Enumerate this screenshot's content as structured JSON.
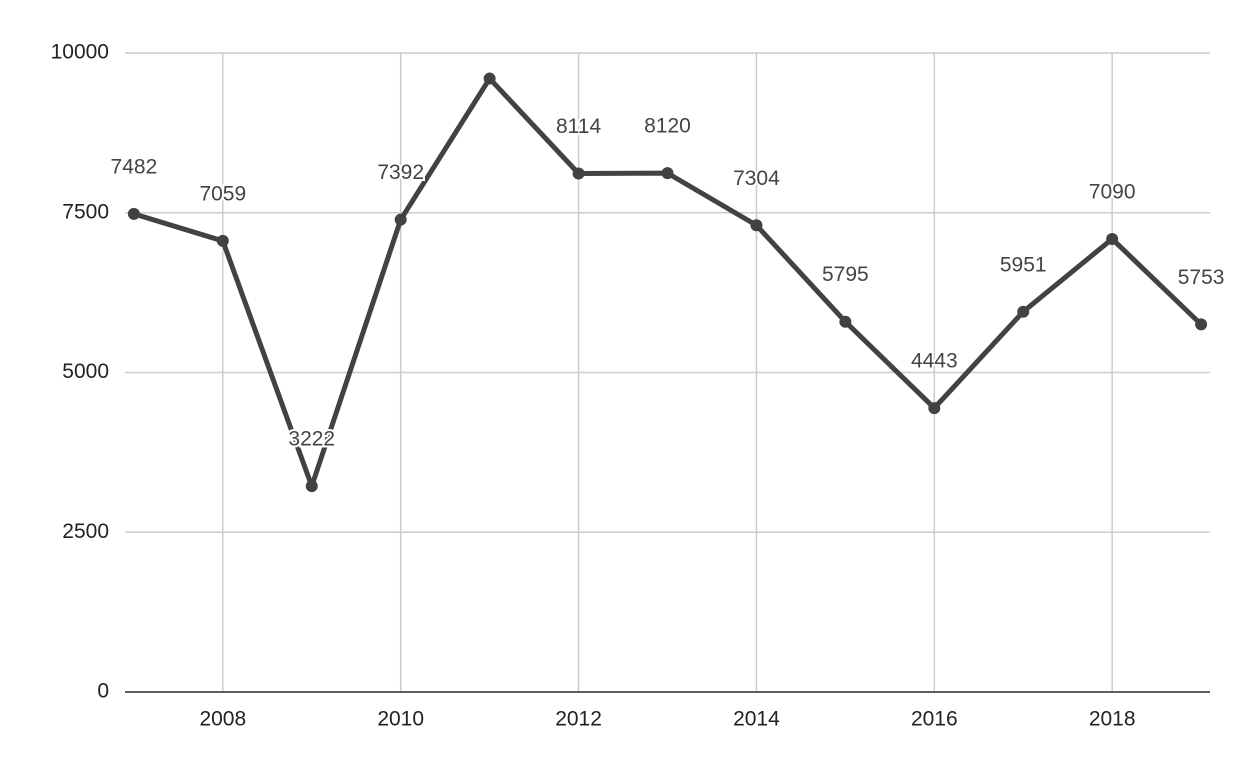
{
  "chart_data": {
    "type": "line",
    "x": [
      2007,
      2008,
      2009,
      2010,
      2011,
      2012,
      2013,
      2014,
      2015,
      2016,
      2017,
      2018,
      2019
    ],
    "series": [
      {
        "color": "#424242",
        "values": [
          7482,
          7059,
          3222,
          7392,
          9600,
          8114,
          8120,
          7304,
          5795,
          4443,
          5951,
          7090,
          5753
        ],
        "value_labels": [
          "7482",
          "7059",
          "3222",
          "7392",
          null,
          "8114",
          "8120",
          "7304",
          "5795",
          "4443",
          "5951",
          "7090",
          "5753"
        ]
      }
    ],
    "xlim": [
      2006.9,
      2019.1
    ],
    "xticks": [
      2008,
      2010,
      2012,
      2014,
      2016,
      2018
    ],
    "ylim": [
      0,
      10000
    ],
    "yticks": [
      0,
      2500,
      5000,
      7500,
      10000
    ],
    "grid": true
  }
}
